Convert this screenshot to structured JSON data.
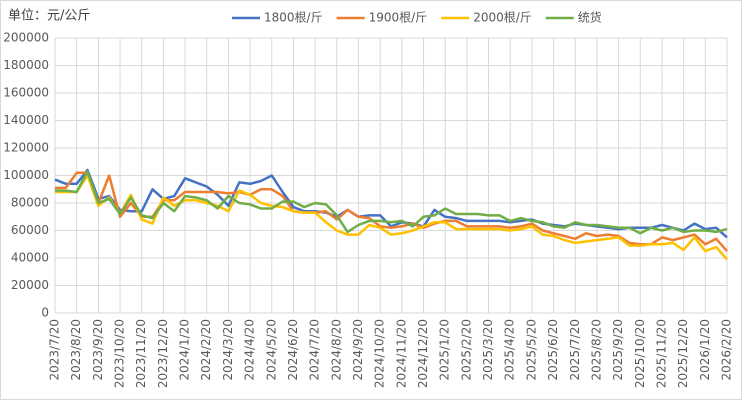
{
  "chart_data": {
    "type": "line",
    "title": "单位：元/公斤",
    "categories": [
      "2023/7/20",
      null,
      "2023/8/20",
      null,
      "2023/9/20",
      null,
      "2023/10/20",
      null,
      "2023/11/20",
      null,
      "2023/12/20",
      null,
      "2024/1/20",
      null,
      "2024/2/20",
      null,
      "2024/3/20",
      null,
      "2024/4/20",
      null,
      "2024/5/20",
      null,
      "2024/6/20",
      null,
      "2024/7/20",
      null,
      "2024/8/20",
      null,
      "2024/9/20",
      null,
      "2024/10/20",
      null,
      "2024/11/20",
      null,
      "2024/12/20",
      null,
      "2025/1/20",
      null,
      "2025/2/20",
      null,
      "2025/3/20",
      null,
      "2025/4/20",
      null,
      "2025/5/20",
      null,
      "2025/6/20",
      null,
      "2025/7/20",
      null,
      "2025/8/20",
      null,
      "2025/9/20",
      null,
      "2025/10/20",
      null,
      "2025/11/20",
      null,
      "2025/12/20",
      null,
      "2026/1/20",
      null,
      "2026/2/20"
    ],
    "series": [
      {
        "name": "1800根/斤",
        "color": "#4472c4",
        "values": [
          97000,
          94000,
          94000,
          104000,
          83000,
          85000,
          75000,
          74000,
          74000,
          90000,
          83000,
          85000,
          98000,
          95000,
          92000,
          86000,
          78000,
          95000,
          94000,
          96000,
          100000,
          88000,
          77000,
          74000,
          74000,
          73000,
          70000,
          75000,
          70000,
          71000,
          71000,
          63000,
          66000,
          65000,
          63000,
          75000,
          70000,
          69000,
          67000,
          67000,
          67000,
          67000,
          66000,
          67000,
          68000,
          65000,
          64000,
          63000,
          65000,
          64000,
          63000,
          62000,
          61000,
          62000,
          62000,
          62000,
          64000,
          62000,
          60000,
          65000,
          61000,
          62000,
          55000
        ]
      },
      {
        "name": "1900根/斤",
        "color": "#ed7d31",
        "values": [
          91000,
          91000,
          102000,
          102000,
          80000,
          100000,
          70000,
          80000,
          70000,
          70000,
          82000,
          82000,
          88000,
          88000,
          88000,
          88000,
          87000,
          88000,
          86000,
          90000,
          90000,
          85000,
          74000,
          73000,
          73000,
          74000,
          68000,
          75000,
          70000,
          69000,
          63000,
          62000,
          63000,
          65000,
          62000,
          65000,
          67000,
          67000,
          63000,
          63000,
          63000,
          63000,
          62000,
          63000,
          65000,
          60000,
          58000,
          56000,
          54000,
          58000,
          56000,
          57000,
          56000,
          51000,
          50000,
          50000,
          55000,
          53000,
          55000,
          57000,
          50000,
          54000,
          45000
        ]
      },
      {
        "name": "2000根/斤",
        "color": "#ffc000",
        "values": [
          88000,
          88000,
          88000,
          100000,
          78000,
          84000,
          72000,
          86000,
          68000,
          65000,
          84000,
          78000,
          82000,
          82000,
          80000,
          78000,
          74000,
          89000,
          86000,
          80000,
          78000,
          77000,
          74000,
          73000,
          73000,
          66000,
          60000,
          57000,
          57000,
          64000,
          62000,
          57000,
          58000,
          60000,
          63000,
          66000,
          66000,
          61000,
          61000,
          61000,
          61000,
          61000,
          60000,
          61000,
          63000,
          57000,
          56000,
          53000,
          51000,
          52000,
          53000,
          54000,
          55000,
          49000,
          49000,
          50000,
          50000,
          51000,
          46000,
          55000,
          45000,
          48000,
          39000
        ]
      },
      {
        "name": "统货",
        "color": "#70ad47",
        "values": [
          89000,
          89000,
          88000,
          103000,
          80000,
          83000,
          72000,
          84000,
          71000,
          69000,
          80000,
          74000,
          85000,
          84000,
          82000,
          76000,
          85000,
          80000,
          79000,
          76000,
          76000,
          81000,
          81000,
          77000,
          80000,
          79000,
          71000,
          59000,
          64000,
          67000,
          67000,
          66000,
          67000,
          63000,
          70000,
          71000,
          76000,
          72000,
          72000,
          72000,
          71000,
          71000,
          67000,
          69000,
          67000,
          66000,
          63000,
          62000,
          66000,
          64000,
          64000,
          63000,
          62000,
          62000,
          58000,
          62000,
          60000,
          62000,
          59000,
          60000,
          60000,
          59000,
          61000
        ]
      }
    ],
    "ylim": [
      0,
      200000
    ],
    "yticks": [
      0,
      20000,
      40000,
      60000,
      80000,
      100000,
      120000,
      140000,
      160000,
      180000,
      200000
    ],
    "grid": true,
    "legend": "top"
  }
}
